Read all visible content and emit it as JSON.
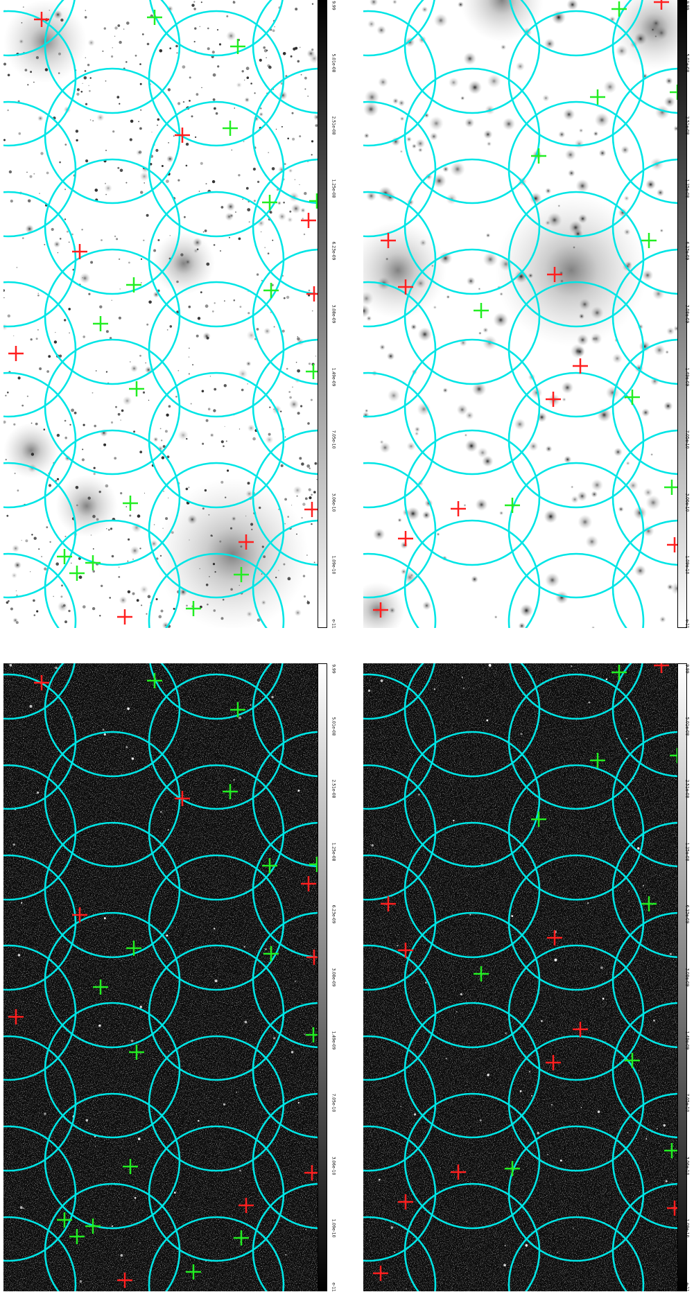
{
  "colors": {
    "circle": "#00e5e5",
    "red_marker": "#ff1f1f",
    "green_marker": "#22ee22",
    "dark_background": "#0b0b0b",
    "light_background": "#ffffff"
  },
  "colorbar": {
    "tick_labels": [
      "e-11",
      "1.09e-10",
      "3.06e-10",
      "7.05e-10",
      "1.49e-09",
      "3.08e-09",
      "6.23e-09",
      "1.25e-08",
      "2.51e-08",
      "5.01e-08",
      "9.99"
    ]
  },
  "circles": [
    [
      7,
      -17
    ],
    [
      7,
      113
    ],
    [
      7,
      244
    ],
    [
      7,
      374
    ],
    [
      7,
      504
    ],
    [
      7,
      635
    ],
    [
      7,
      765
    ],
    [
      7,
      896
    ],
    [
      157,
      66
    ],
    [
      157,
      196
    ],
    [
      157,
      327
    ],
    [
      157,
      457
    ],
    [
      157,
      587
    ],
    [
      157,
      718
    ],
    [
      157,
      848
    ],
    [
      307,
      -17
    ],
    [
      307,
      113
    ],
    [
      307,
      244
    ],
    [
      307,
      374
    ],
    [
      307,
      504
    ],
    [
      307,
      635
    ],
    [
      307,
      765
    ],
    [
      307,
      896
    ],
    [
      457,
      66
    ],
    [
      457,
      196
    ],
    [
      457,
      327
    ],
    [
      457,
      457
    ],
    [
      457,
      587
    ],
    [
      457,
      718
    ],
    [
      457,
      848
    ]
  ],
  "panels": [
    {
      "name": "top-left",
      "style": "optical",
      "red": [
        [
          55,
          28
        ],
        [
          258,
          195
        ],
        [
          440,
          318
        ],
        [
          110,
          363
        ],
        [
          448,
          424
        ],
        [
          18,
          510
        ],
        [
          445,
          735
        ],
        [
          350,
          782
        ],
        [
          175,
          890
        ]
      ],
      "green": [
        [
          218,
          25
        ],
        [
          338,
          67
        ],
        [
          327,
          185
        ],
        [
          384,
          292
        ],
        [
          452,
          290
        ],
        [
          188,
          411
        ],
        [
          386,
          419
        ],
        [
          140,
          467
        ],
        [
          192,
          561
        ],
        [
          447,
          536
        ],
        [
          183,
          726
        ],
        [
          88,
          803
        ],
        [
          129,
          812
        ],
        [
          106,
          827
        ],
        [
          343,
          829
        ],
        [
          274,
          878
        ]
      ]
    },
    {
      "name": "top-right",
      "style": "smooth",
      "red": [
        [
          430,
          3
        ],
        [
          36,
          347
        ],
        [
          61,
          414
        ],
        [
          276,
          396
        ],
        [
          313,
          528
        ],
        [
          274,
          576
        ],
        [
          137,
          734
        ],
        [
          61,
          777
        ],
        [
          25,
          880
        ],
        [
          449,
          786
        ]
      ],
      "green": [
        [
          369,
          13
        ],
        [
          338,
          140
        ],
        [
          453,
          133
        ],
        [
          253,
          225
        ],
        [
          412,
          347
        ],
        [
          170,
          448
        ],
        [
          388,
          573
        ],
        [
          215,
          729
        ],
        [
          445,
          703
        ]
      ]
    },
    {
      "name": "bottom-left",
      "style": "xray",
      "red": [
        [
          55,
          28
        ],
        [
          258,
          195
        ],
        [
          440,
          318
        ],
        [
          110,
          363
        ],
        [
          448,
          424
        ],
        [
          18,
          510
        ],
        [
          445,
          735
        ],
        [
          350,
          782
        ],
        [
          175,
          890
        ]
      ],
      "green": [
        [
          218,
          25
        ],
        [
          338,
          67
        ],
        [
          327,
          185
        ],
        [
          384,
          292
        ],
        [
          452,
          290
        ],
        [
          188,
          411
        ],
        [
          386,
          419
        ],
        [
          140,
          467
        ],
        [
          192,
          561
        ],
        [
          447,
          536
        ],
        [
          183,
          726
        ],
        [
          88,
          803
        ],
        [
          129,
          812
        ],
        [
          106,
          827
        ],
        [
          343,
          829
        ],
        [
          274,
          878
        ]
      ]
    },
    {
      "name": "bottom-right",
      "style": "xray",
      "red": [
        [
          430,
          3
        ],
        [
          36,
          347
        ],
        [
          61,
          414
        ],
        [
          276,
          396
        ],
        [
          313,
          528
        ],
        [
          274,
          576
        ],
        [
          137,
          734
        ],
        [
          61,
          777
        ],
        [
          25,
          880
        ],
        [
          449,
          786
        ]
      ],
      "green": [
        [
          369,
          13
        ],
        [
          338,
          140
        ],
        [
          453,
          133
        ],
        [
          253,
          225
        ],
        [
          412,
          347
        ],
        [
          170,
          448
        ],
        [
          388,
          573
        ],
        [
          215,
          729
        ],
        [
          445,
          703
        ]
      ]
    }
  ]
}
